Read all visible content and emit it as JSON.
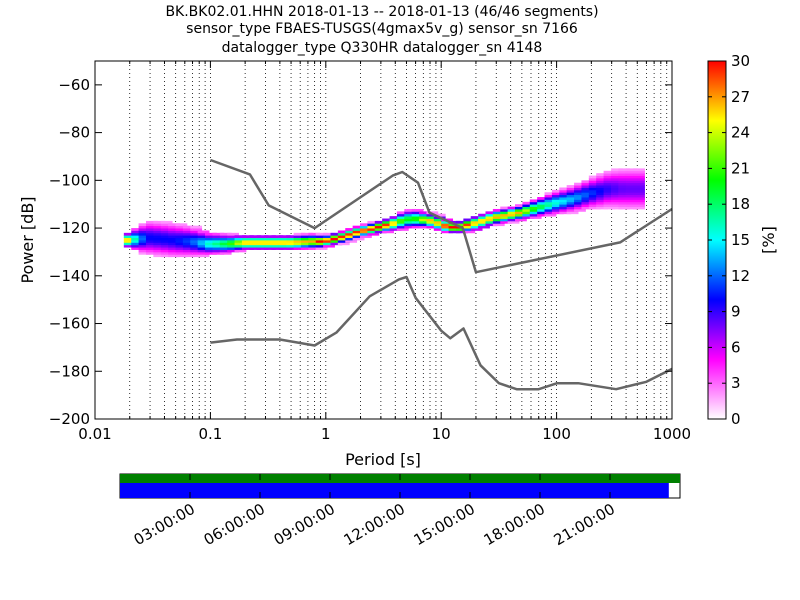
{
  "chart_data": {
    "type": "heatmap",
    "title_lines": [
      "BK.BK02.01.HHN   2018-01-13 -- 2018-01-13  (46/46 segments)",
      "sensor_type FBAES-TUSGS(4gmax5v_g) sensor_sn 7166",
      "datalogger_type Q330HR datalogger_sn 4148"
    ],
    "xlabel": "Period [s]",
    "ylabel": "Power [dB]",
    "x_scale": "log",
    "xlim": [
      0.01,
      1000
    ],
    "ylim": [
      -200,
      -50
    ],
    "x_ticks": [
      0.01,
      0.1,
      1,
      10,
      100,
      1000
    ],
    "x_tick_labels": [
      "0.01",
      "0.1",
      "1",
      "10",
      "100",
      "1000"
    ],
    "y_ticks": [
      -200,
      -180,
      -160,
      -140,
      -120,
      -100,
      -80,
      -60
    ],
    "y_tick_labels": [
      "−200",
      "−180",
      "−160",
      "−140",
      "−120",
      "−100",
      "−80",
      "−60"
    ],
    "grid": "vertical dotted",
    "colorbar": {
      "label": "[%]",
      "range": [
        0,
        30
      ],
      "ticks": [
        0,
        3,
        6,
        9,
        12,
        15,
        18,
        21,
        24,
        27,
        30
      ],
      "tick_labels": [
        "0",
        "3",
        "6",
        "9",
        "12",
        "15",
        "18",
        "21",
        "24",
        "27",
        "30"
      ],
      "colormap": "pqlx",
      "stops": [
        "#ffffff",
        "#ff00ff",
        "#0000ff",
        "#00ffff",
        "#00ff00",
        "#ffff00",
        "#ff0000"
      ]
    },
    "psd_band": [
      {
        "period": 0.02,
        "center": -125.5,
        "spread": 1.5
      },
      {
        "period": 0.03,
        "center": -124.5,
        "spread": 4
      },
      {
        "period": 0.04,
        "center": -125,
        "spread": 4
      },
      {
        "period": 0.05,
        "center": -125.5,
        "spread": 4
      },
      {
        "period": 0.07,
        "center": -126,
        "spread": 3.5
      },
      {
        "period": 0.1,
        "center": -127,
        "spread": 2.5
      },
      {
        "period": 0.15,
        "center": -127,
        "spread": 2
      },
      {
        "period": 0.2,
        "center": -126.5,
        "spread": 1.5
      },
      {
        "period": 0.3,
        "center": -126.5,
        "spread": 1.5
      },
      {
        "period": 0.5,
        "center": -126.5,
        "spread": 1.5
      },
      {
        "period": 0.8,
        "center": -126,
        "spread": 1.5
      },
      {
        "period": 1,
        "center": -126,
        "spread": 1.2
      },
      {
        "period": 1.5,
        "center": -124,
        "spread": 1.2
      },
      {
        "period": 2,
        "center": -122,
        "spread": 1.2
      },
      {
        "period": 3,
        "center": -120,
        "spread": 1.2
      },
      {
        "period": 4,
        "center": -118.5,
        "spread": 1.5
      },
      {
        "period": 5,
        "center": -117,
        "spread": 2
      },
      {
        "period": 6,
        "center": -116.5,
        "spread": 2
      },
      {
        "period": 8,
        "center": -117,
        "spread": 1.5
      },
      {
        "period": 10,
        "center": -118.5,
        "spread": 1.5
      },
      {
        "period": 12,
        "center": -120,
        "spread": 1.2
      },
      {
        "period": 15,
        "center": -120,
        "spread": 1.2
      },
      {
        "period": 20,
        "center": -118.5,
        "spread": 1.5
      },
      {
        "period": 30,
        "center": -116,
        "spread": 1.5
      },
      {
        "period": 50,
        "center": -114,
        "spread": 1.5
      },
      {
        "period": 70,
        "center": -112,
        "spread": 2
      },
      {
        "period": 100,
        "center": -110,
        "spread": 2.5
      },
      {
        "period": 150,
        "center": -108,
        "spread": 3
      },
      {
        "period": 200,
        "center": -106,
        "spread": 3.5
      },
      {
        "period": 300,
        "center": -104,
        "spread": 4.5
      },
      {
        "period": 400,
        "center": -104,
        "spread": 5
      },
      {
        "period": 600,
        "center": -104,
        "spread": 5
      }
    ],
    "noise_models": [
      {
        "points": [
          [
            0.1,
            -91.5
          ],
          [
            0.22,
            -97.5
          ],
          [
            0.32,
            -110.5
          ],
          [
            0.8,
            -120
          ],
          [
            3.8,
            -98
          ],
          [
            4.6,
            -96.5
          ],
          [
            6.3,
            -101
          ],
          [
            7.9,
            -113.5
          ],
          [
            15.4,
            -120
          ],
          [
            20,
            -138.5
          ],
          [
            354.8,
            -126
          ],
          [
            1000,
            -112
          ]
        ]
      },
      {
        "points": [
          [
            0.1,
            -168
          ],
          [
            0.17,
            -166.7
          ],
          [
            0.4,
            -166.7
          ],
          [
            0.8,
            -169.2
          ],
          [
            1.24,
            -163.7
          ],
          [
            2.4,
            -148.6
          ],
          [
            4.3,
            -141.5
          ],
          [
            5,
            -140.5
          ],
          [
            6,
            -149.2
          ],
          [
            10,
            -163
          ],
          [
            12,
            -166.2
          ],
          [
            15.6,
            -162.1
          ],
          [
            21.9,
            -177.5
          ],
          [
            31.6,
            -185
          ],
          [
            45,
            -187.5
          ],
          [
            70,
            -187.5
          ],
          [
            101,
            -185
          ],
          [
            154,
            -185
          ],
          [
            328,
            -187.5
          ],
          [
            600,
            -184.4
          ],
          [
            1000,
            -179
          ]
        ]
      }
    ],
    "timeline": {
      "tick_labels": [
        "03:00:00",
        "06:00:00",
        "09:00:00",
        "12:00:00",
        "15:00:00",
        "18:00:00",
        "21:00:00"
      ],
      "data_fraction": 0.98,
      "psd_fraction": 0.98,
      "colors": {
        "data": "#008000",
        "psd": "#0000ff"
      }
    }
  }
}
